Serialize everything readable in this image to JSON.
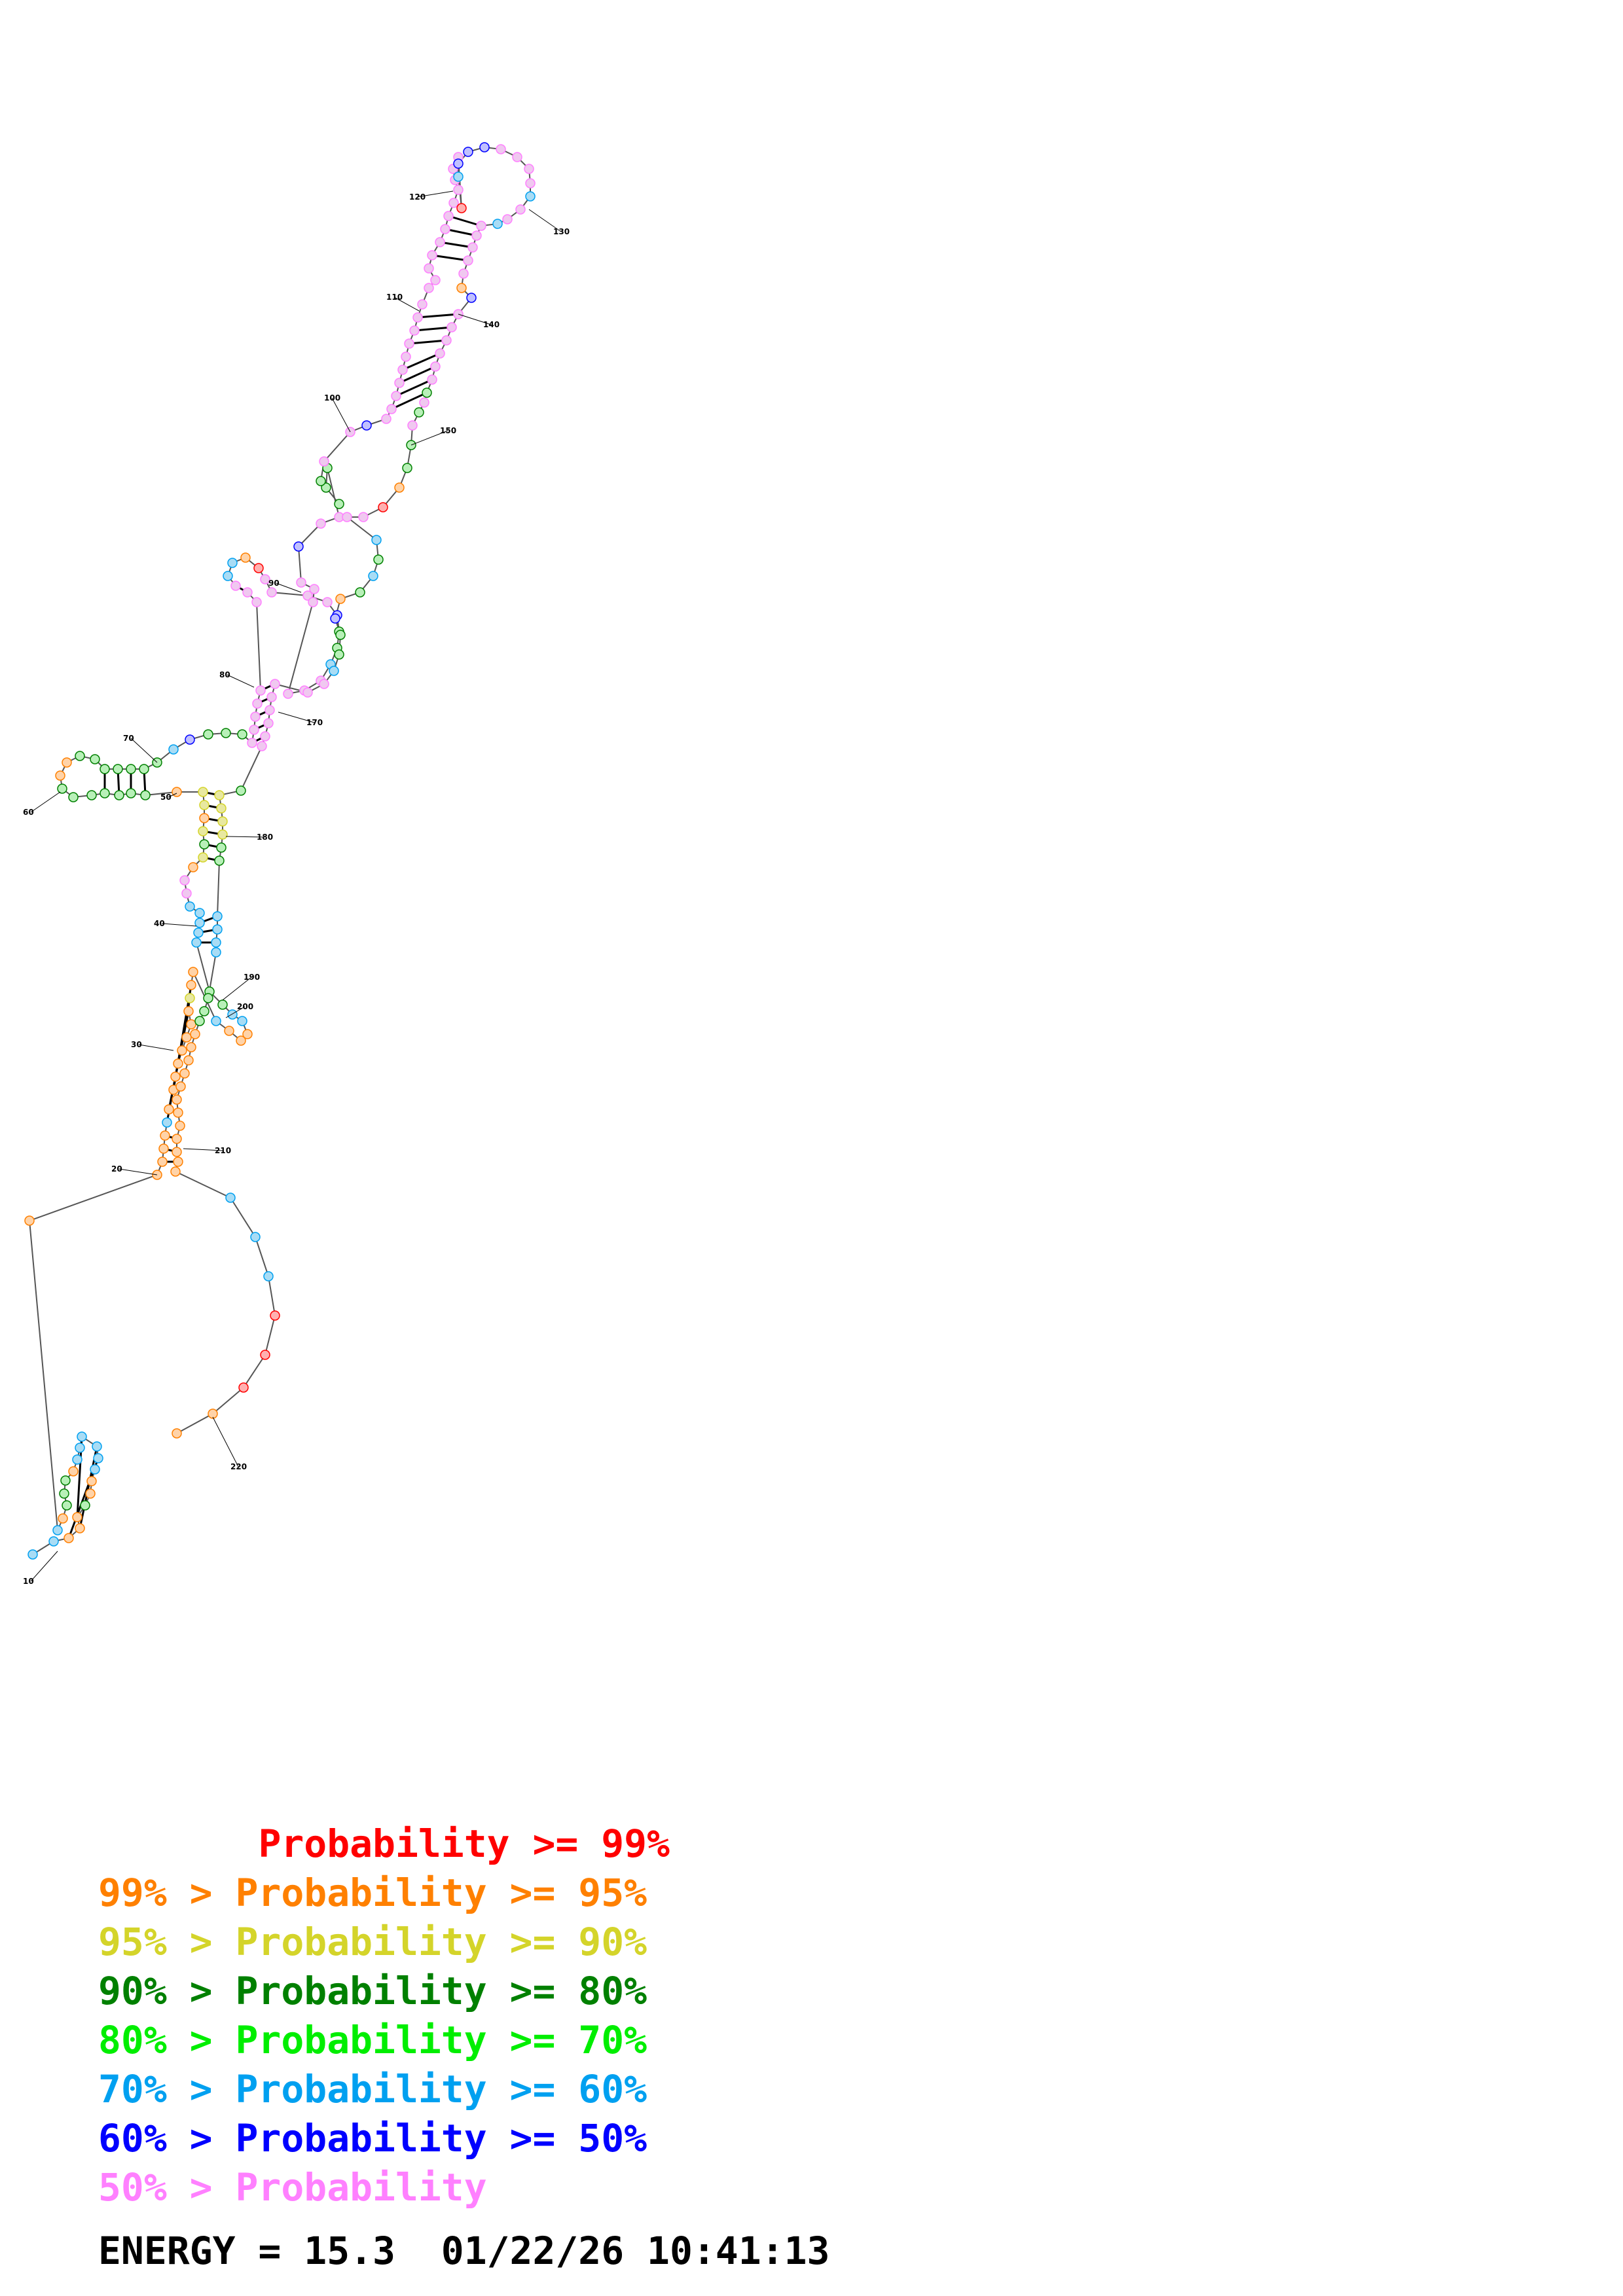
{
  "position_labels": [
    "10",
    "20",
    "30",
    "40",
    "50",
    "60",
    "70",
    "80",
    "90",
    "100",
    "110",
    "120",
    "130",
    "140",
    "150",
    "170",
    "180",
    "190",
    "200",
    "210",
    "220"
  ],
  "legend": {
    "rows": [
      {
        "prefix": "       ",
        "pcolor": "#ff0000",
        "text": "Probability >= 99%",
        "color": "#ff0000"
      },
      {
        "prefix": "99% > ",
        "pcolor": "#ff8000",
        "text": "Probability >= 95%",
        "color": "#ff8000"
      },
      {
        "prefix": "95% > ",
        "pcolor": "#d4d42a",
        "text": "Probability >= 90%",
        "color": "#d4d42a"
      },
      {
        "prefix": "90% > ",
        "pcolor": "#008000",
        "text": "Probability >= 80%",
        "color": "#008000"
      },
      {
        "prefix": "80% > ",
        "pcolor": "#00ee00",
        "text": "Probability >= 70%",
        "color": "#00ee00"
      },
      {
        "prefix": "70% > ",
        "pcolor": "#00a0f0",
        "text": "Probability >= 60%",
        "color": "#00a0f0"
      },
      {
        "prefix": "60% > ",
        "pcolor": "#0000ff",
        "text": "Probability >= 50%",
        "color": "#0000ff"
      },
      {
        "prefix": "50% > ",
        "pcolor": "#ff80ff",
        "text": "Probability",
        "color": "#ff80ff"
      }
    ]
  },
  "energy_line": "ENERGY = 15.3  01/22/26 10:41:13",
  "colors": {
    "p99": "#ff0000",
    "p95": "#ff8000",
    "p90": "#d4d42a",
    "p80": "#008000",
    "p70": "#00ee00",
    "p60": "#00a0f0",
    "p50": "#0000ff",
    "plow": "#ff80ff"
  }
}
